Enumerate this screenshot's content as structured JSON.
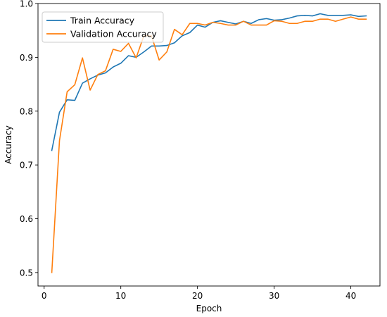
{
  "chart_data": {
    "type": "line",
    "xlabel": "Epoch",
    "ylabel": "Accuracy",
    "xlim": [
      -0.8,
      43.8
    ],
    "ylim": [
      0.475,
      1.0
    ],
    "xticks": [
      0,
      10,
      20,
      30,
      40
    ],
    "yticks": [
      0.5,
      0.6,
      0.7,
      0.8,
      0.9,
      1.0
    ],
    "ytick_labels": [
      "0.5",
      "0.6",
      "0.7",
      "0.8",
      "0.9",
      "1.0"
    ],
    "grid": false,
    "legend_position": "top-left",
    "x": [
      1,
      2,
      3,
      4,
      5,
      6,
      7,
      8,
      9,
      10,
      11,
      12,
      13,
      14,
      15,
      16,
      17,
      18,
      19,
      20,
      21,
      22,
      23,
      24,
      25,
      26,
      27,
      28,
      29,
      30,
      31,
      32,
      33,
      34,
      35,
      36,
      37,
      38,
      39,
      40,
      41,
      42
    ],
    "series": [
      {
        "name": "Train Accuracy",
        "color": "#1f77b4",
        "values": [
          0.727,
          0.798,
          0.821,
          0.82,
          0.852,
          0.86,
          0.867,
          0.871,
          0.882,
          0.889,
          0.903,
          0.9,
          0.91,
          0.921,
          0.921,
          0.922,
          0.927,
          0.94,
          0.946,
          0.96,
          0.956,
          0.965,
          0.968,
          0.965,
          0.962,
          0.967,
          0.963,
          0.97,
          0.972,
          0.969,
          0.97,
          0.973,
          0.977,
          0.978,
          0.977,
          0.981,
          0.978,
          0.978,
          0.978,
          0.979,
          0.976,
          0.977
        ]
      },
      {
        "name": "Validation Accuracy",
        "color": "#ff7f0e",
        "values": [
          0.5,
          0.745,
          0.836,
          0.849,
          0.899,
          0.839,
          0.868,
          0.875,
          0.915,
          0.911,
          0.926,
          0.899,
          0.94,
          0.94,
          0.895,
          0.91,
          0.952,
          0.942,
          0.963,
          0.963,
          0.96,
          0.965,
          0.963,
          0.96,
          0.96,
          0.967,
          0.96,
          0.96,
          0.96,
          0.968,
          0.967,
          0.963,
          0.963,
          0.967,
          0.967,
          0.971,
          0.971,
          0.967,
          0.971,
          0.975,
          0.971,
          0.971
        ]
      }
    ]
  }
}
